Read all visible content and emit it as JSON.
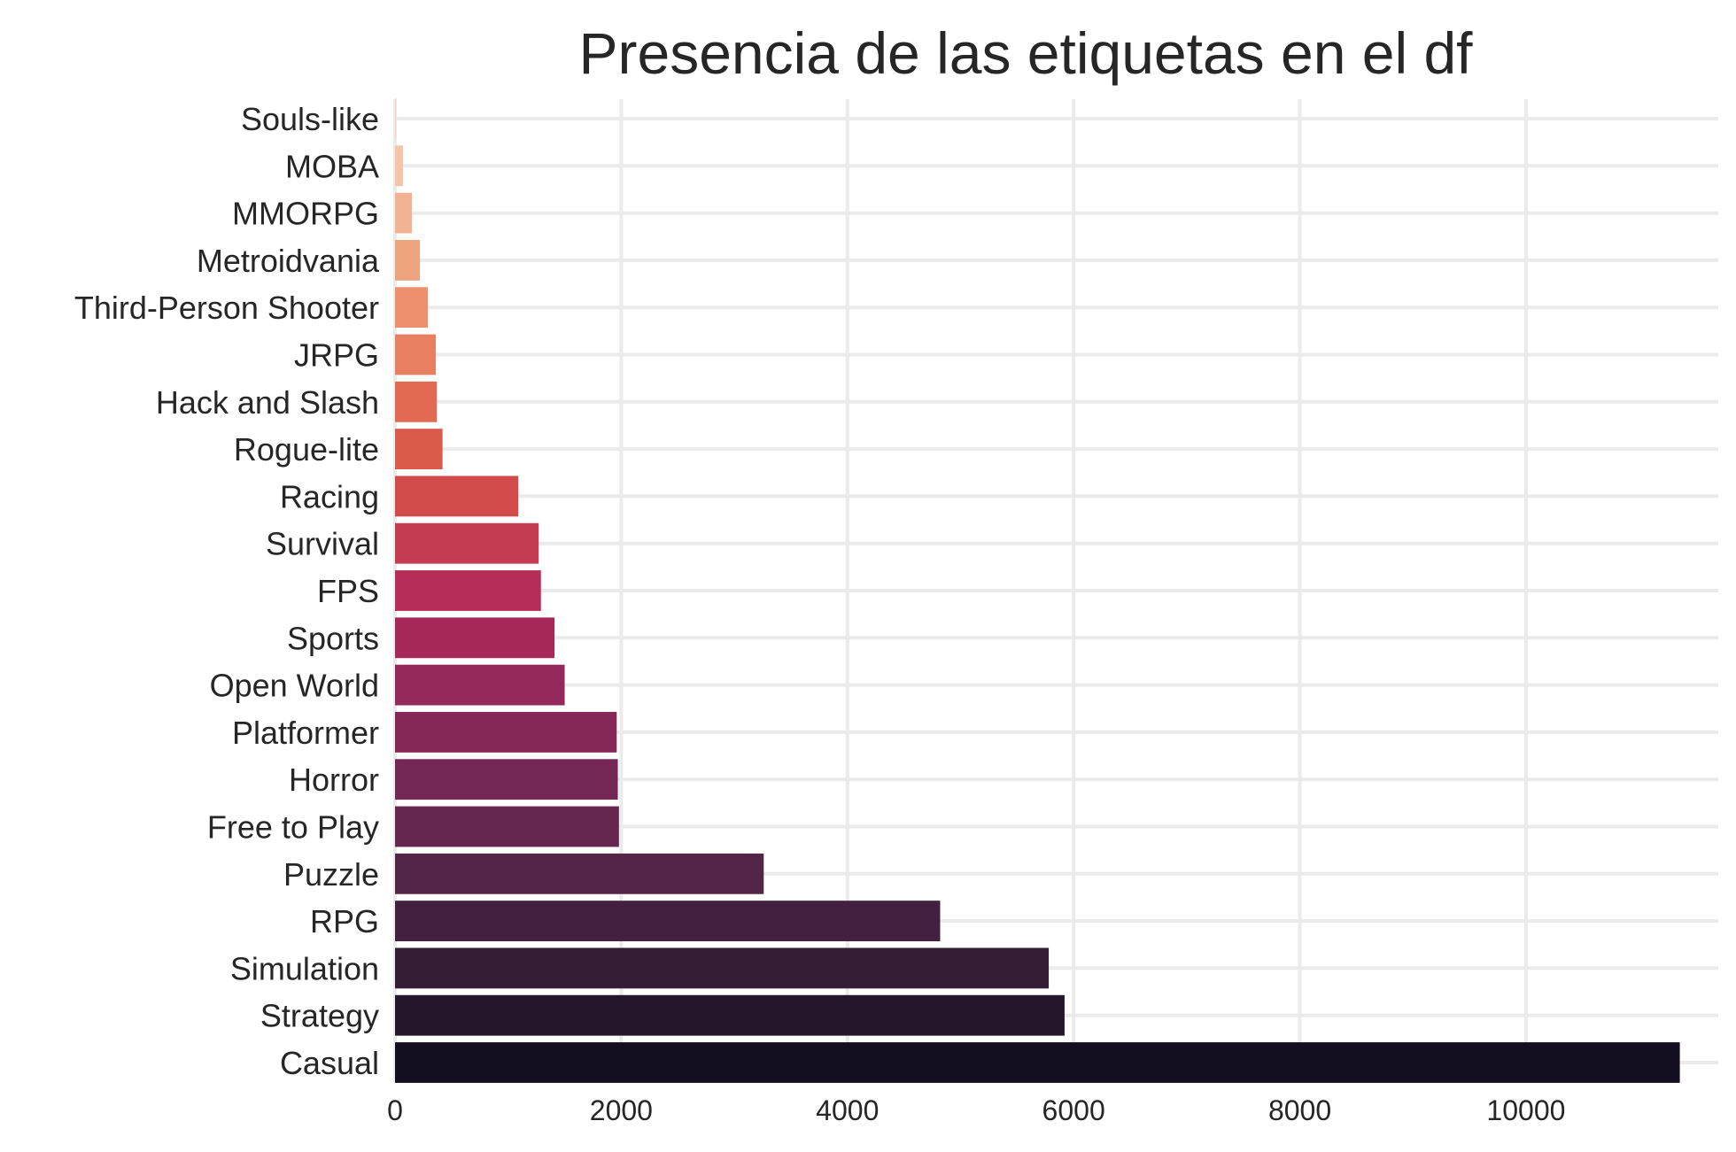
{
  "chart_data": {
    "type": "bar",
    "orientation": "horizontal",
    "title": "Presencia de las etiquetas en el df",
    "xlabel": "",
    "ylabel": "",
    "categories": [
      "Souls-like",
      "MOBA",
      "MMORPG",
      "Metroidvania",
      "Third-Person Shooter",
      "JRPG",
      "Hack and Slash",
      "Rogue-lite",
      "Racing",
      "Survival",
      "FPS",
      "Sports",
      "Open World",
      "Platformer",
      "Horror",
      "Free to Play",
      "Puzzle",
      "RPG",
      "Simulation",
      "Strategy",
      "Casual"
    ],
    "values": [
      10,
      70,
      150,
      220,
      290,
      360,
      370,
      420,
      1090,
      1270,
      1290,
      1410,
      1500,
      1960,
      1970,
      1980,
      3260,
      4820,
      5780,
      5920,
      11360
    ],
    "colors": [
      "#f6d6c2",
      "#f4c4a9",
      "#f1b393",
      "#eea37f",
      "#ec906d",
      "#e87f60",
      "#e26952",
      "#db5b4b",
      "#d24a4a",
      "#c33c52",
      "#b62e57",
      "#a52859",
      "#93285a",
      "#852858",
      "#742754",
      "#65264f",
      "#532547",
      "#43203f",
      "#331d35",
      "#24172b",
      "#140f20"
    ],
    "xlim": [
      0,
      11700
    ],
    "xticks": [
      0,
      2000,
      4000,
      6000,
      8000,
      10000
    ],
    "xtick_labels": [
      "0",
      "2000",
      "4000",
      "6000",
      "8000",
      "10000"
    ],
    "grid": true,
    "legend": "none"
  }
}
